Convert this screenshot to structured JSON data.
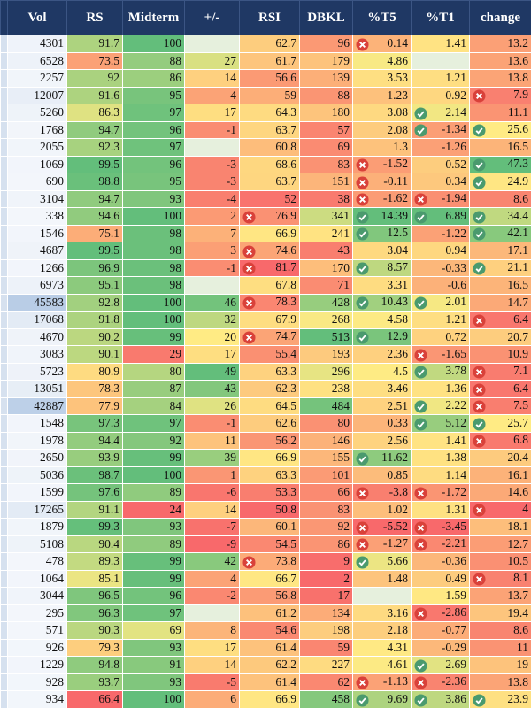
{
  "table": {
    "columns": [
      "Vol",
      "RS",
      "Midterm",
      "+/-",
      "RSI",
      "DBKL",
      "%T5",
      "%T1",
      "change"
    ],
    "column_scales": [
      [
        "#f3f6fb",
        "#dde7f3",
        "#b9cde6"
      ],
      [
        "#f8696b",
        "#ffeb84",
        "#63be7b"
      ],
      [
        "#f8696b",
        "#ffeb84",
        "#63be7b"
      ],
      [
        "#f8696b",
        "#ffeb84",
        "#63be7b"
      ],
      [
        "#f8696b",
        "#ffeb84",
        "#f8696b"
      ],
      [
        "#f8696b",
        "#ffeb84",
        "#63be7b"
      ],
      [
        "#f8696b",
        "#ffeb84",
        "#63be7b"
      ],
      [
        "#f8696b",
        "#ffeb84",
        "#63be7b"
      ],
      [
        "#f8696b",
        "#ffeb84",
        "#63be7b"
      ]
    ],
    "empty_color": "#e6f0dd",
    "strip_color": "#d6e1ef",
    "rows": [
      [
        4301,
        91.7,
        100,
        null,
        62.7,
        96,
        {
          "value": 0.14,
          "icon": "cross"
        },
        1.41,
        13.2
      ],
      [
        6528,
        73.5,
        88,
        27,
        61.7,
        179,
        4.86,
        null,
        13.6
      ],
      [
        2257,
        92,
        86,
        14,
        56.6,
        139,
        3.53,
        1.21,
        13.8
      ],
      [
        12007,
        91.6,
        95,
        4,
        59,
        88,
        1.23,
        0.92,
        {
          "value": 7.9,
          "icon": "cross"
        }
      ],
      [
        5260,
        86.3,
        97,
        17,
        64.3,
        180,
        3.08,
        {
          "value": 2.14,
          "icon": "check"
        },
        11.1
      ],
      [
        1768,
        94.7,
        96,
        -1,
        63.7,
        57,
        2.08,
        {
          "value": -1.34,
          "icon": "check"
        },
        {
          "value": 25.6,
          "icon": "check"
        }
      ],
      [
        2055,
        92.3,
        97,
        null,
        60.8,
        69,
        1.3,
        -1.26,
        16.5
      ],
      [
        1069,
        99.5,
        96,
        -3,
        68.6,
        83,
        {
          "value": -1.52,
          "icon": "cross"
        },
        0.52,
        {
          "value": 47.3,
          "icon": "check"
        }
      ],
      [
        690,
        98.8,
        95,
        -3,
        63.7,
        151,
        {
          "value": -0.11,
          "icon": "cross"
        },
        0.34,
        {
          "value": 24.9,
          "icon": "check"
        }
      ],
      [
        3104,
        94.7,
        93,
        -4,
        52,
        38,
        {
          "value": -1.62,
          "icon": "cross"
        },
        {
          "value": -1.94,
          "icon": "cross"
        },
        8.6
      ],
      [
        338,
        94.6,
        100,
        2,
        {
          "value": 76.9,
          "icon": "cross"
        },
        341,
        {
          "value": 14.39,
          "icon": "check"
        },
        {
          "value": 6.89,
          "icon": "check"
        },
        {
          "value": 34.4,
          "icon": "check"
        }
      ],
      [
        1546,
        75.1,
        98,
        7,
        66.9,
        241,
        {
          "value": 12.5,
          "icon": "check"
        },
        -1.22,
        {
          "value": 42.1,
          "icon": "check"
        }
      ],
      [
        4687,
        99.5,
        98,
        3,
        {
          "value": 74.6,
          "icon": "cross"
        },
        43,
        3.04,
        0.94,
        17.1
      ],
      [
        1266,
        96.9,
        98,
        -1,
        {
          "value": 81.7,
          "icon": "cross"
        },
        170,
        {
          "value": 8.57,
          "icon": "check"
        },
        -0.33,
        {
          "value": 21.1,
          "icon": "check"
        }
      ],
      [
        6973,
        95.1,
        98,
        null,
        67.8,
        71,
        3.31,
        -0.6,
        16.5
      ],
      [
        45583,
        92.8,
        100,
        46,
        {
          "value": 78.3,
          "icon": "cross"
        },
        428,
        {
          "value": 10.43,
          "icon": "check"
        },
        {
          "value": 2.01,
          "icon": "check"
        },
        14.7
      ],
      [
        17068,
        91.8,
        100,
        32,
        67.9,
        268,
        4.58,
        1.21,
        {
          "value": 6.4,
          "icon": "cross"
        }
      ],
      [
        4670,
        90.2,
        99,
        20,
        {
          "value": 74.7,
          "icon": "cross"
        },
        513,
        {
          "value": 12.9,
          "icon": "check"
        },
        0.72,
        20.7
      ],
      [
        3083,
        90.1,
        29,
        17,
        55.4,
        193,
        2.36,
        {
          "value": -1.65,
          "icon": "cross"
        },
        10.9
      ],
      [
        5723,
        80.9,
        80,
        49,
        63.3,
        296,
        4.5,
        {
          "value": 3.78,
          "icon": "check"
        },
        {
          "value": 7.1,
          "icon": "cross"
        }
      ],
      [
        13051,
        78.3,
        87,
        43,
        62.3,
        238,
        3.46,
        1.36,
        {
          "value": 6.4,
          "icon": "cross"
        }
      ],
      [
        42887,
        77.9,
        84,
        26,
        64.5,
        484,
        2.51,
        {
          "value": 2.22,
          "icon": "check"
        },
        {
          "value": 7.5,
          "icon": "cross"
        }
      ],
      [
        1548,
        97.3,
        97,
        -1,
        62.6,
        80,
        0.33,
        {
          "value": 5.12,
          "icon": "check"
        },
        {
          "value": 25.7,
          "icon": "check"
        }
      ],
      [
        1978,
        94.4,
        92,
        11,
        56.2,
        146,
        2.56,
        1.41,
        {
          "value": 6.8,
          "icon": "cross"
        }
      ],
      [
        2650,
        93.9,
        99,
        39,
        66.9,
        155,
        {
          "value": 11.62,
          "icon": "check"
        },
        1.38,
        20.4
      ],
      [
        5036,
        98.7,
        100,
        1,
        63.3,
        101,
        0.85,
        1.14,
        16.1
      ],
      [
        1599,
        97.6,
        89,
        -6,
        53.3,
        66,
        {
          "value": -3.8,
          "icon": "cross"
        },
        {
          "value": -1.72,
          "icon": "cross"
        },
        14.6
      ],
      [
        17265,
        91.1,
        24,
        14,
        50.8,
        83,
        1.02,
        1.31,
        {
          "value": 4,
          "icon": "cross"
        }
      ],
      [
        1879,
        99.3,
        93,
        -7,
        60.1,
        92,
        {
          "value": -5.52,
          "icon": "cross"
        },
        {
          "value": -3.45,
          "icon": "cross"
        },
        18.1
      ],
      [
        5108,
        90.4,
        89,
        -9,
        54.5,
        86,
        {
          "value": -1.27,
          "icon": "cross"
        },
        {
          "value": -2.21,
          "icon": "cross"
        },
        12.7
      ],
      [
        478,
        89.3,
        99,
        42,
        {
          "value": 73.8,
          "icon": "cross"
        },
        9,
        {
          "value": 5.66,
          "icon": "check"
        },
        -0.36,
        10.5
      ],
      [
        1064,
        85.1,
        99,
        4,
        66.7,
        2,
        1.48,
        0.49,
        {
          "value": 8.1,
          "icon": "cross"
        }
      ],
      [
        3044,
        96.5,
        96,
        -2,
        56.8,
        17,
        null,
        1.59,
        13.7
      ],
      [
        295,
        96.3,
        97,
        null,
        61.2,
        134,
        3.16,
        {
          "value": -2.86,
          "icon": "cross"
        },
        19.4
      ],
      [
        571,
        90.3,
        69,
        8,
        54.6,
        198,
        2.18,
        -0.77,
        8.6
      ],
      [
        926,
        79.3,
        93,
        17,
        61.4,
        59,
        4.31,
        -0.29,
        11
      ],
      [
        1229,
        94.8,
        91,
        14,
        62.2,
        227,
        4.61,
        {
          "value": 2.69,
          "icon": "check"
        },
        19
      ],
      [
        928,
        93.7,
        93,
        -5,
        61.4,
        62,
        {
          "value": -1.13,
          "icon": "cross"
        },
        {
          "value": -2.36,
          "icon": "cross"
        },
        13.8
      ],
      [
        934,
        66.4,
        100,
        6,
        66.9,
        458,
        {
          "value": 9.69,
          "icon": "check"
        },
        {
          "value": 3.86,
          "icon": "check"
        },
        {
          "value": 23.9,
          "icon": "check"
        }
      ]
    ]
  }
}
